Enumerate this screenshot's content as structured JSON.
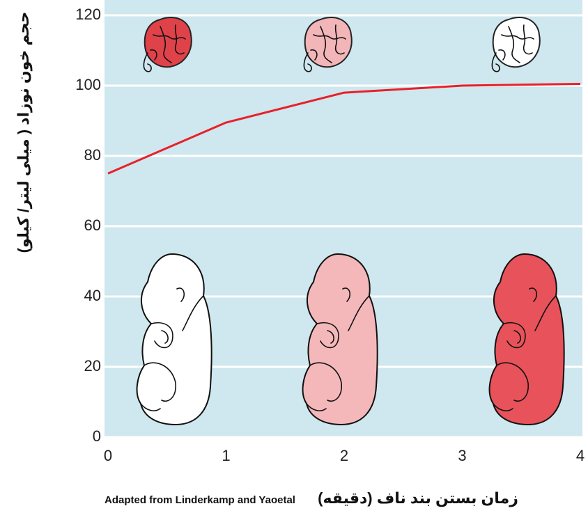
{
  "chart_data": {
    "type": "line",
    "y_label": "حجم خون نوزاد ( میلی لیتر/ کیلو)",
    "x_label": "زمان بستن بند ناف (دقیقه)",
    "source": "Adapted from Linderkamp and Yaoetal",
    "x": [
      0,
      1,
      2,
      3,
      4
    ],
    "series": [
      {
        "color": "#e8202a",
        "values": [
          75,
          89.5,
          98,
          100,
          100.5
        ]
      }
    ],
    "xlim": [
      0,
      4
    ],
    "ylim": [
      0,
      120
    ],
    "xticks": [
      0,
      1,
      2,
      3,
      4
    ],
    "yticks": [
      0,
      20,
      40,
      60,
      80,
      100,
      120
    ],
    "grid": true
  }
}
